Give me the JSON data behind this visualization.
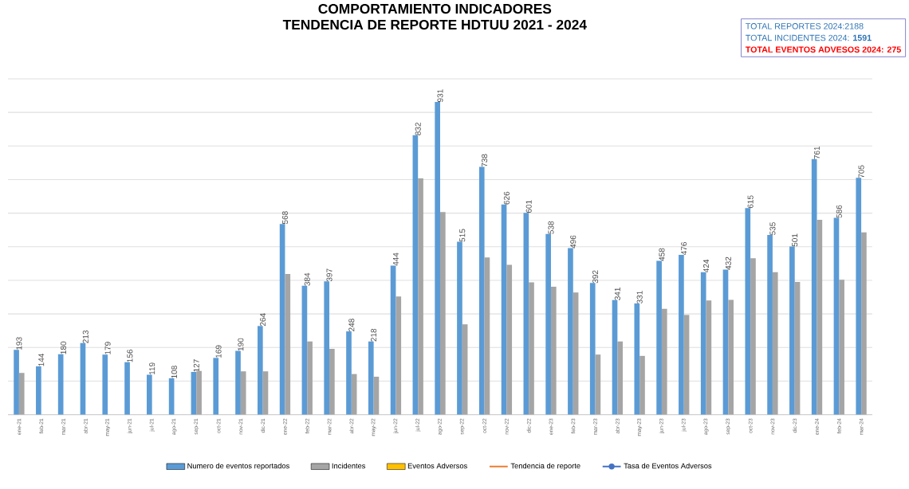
{
  "chart_data": {
    "type": "bar",
    "title": "COMPORTAMIENTO INDICADORES\nTENDENCIA DE REPORTE HDTUU 2021 - 2024",
    "annotations": [
      "TOTAL REPORTES  2024:2188",
      "TOTAL INCIDENTES 2024: **1591**",
      "TOTAL EVENTOS ADVESOS 2024: 275"
    ],
    "categories": [
      "ene-21",
      "feb-21",
      "mar-21",
      "abr-21",
      "may-21",
      "jun-21",
      "jul-21",
      "ago-21",
      "sep-21",
      "oct-21",
      "nov-21",
      "dic-21",
      "ene-22",
      "feb-22",
      "mar-22",
      "abr-22",
      "may-22",
      "jun-22",
      "jul-22",
      "ago-22",
      "sep-22",
      "oct-22",
      "nov-22",
      "dic-22",
      "ene-23",
      "feb-23",
      "mar-23",
      "abr-23",
      "may-23",
      "jun-23",
      "jul-23",
      "ago-23",
      "sep-23",
      "oct-23",
      "nov-23",
      "dic-23",
      "ene-24",
      "feb-24",
      "mar-24"
    ],
    "series": [
      {
        "name": "Numero de eventos reportados",
        "color": "#5b9bd5",
        "values": [
          193,
          144,
          180,
          213,
          179,
          156,
          119,
          108,
          127,
          169,
          190,
          264,
          568,
          384,
          397,
          248,
          218,
          444,
          832,
          931,
          515,
          738,
          626,
          601,
          538,
          496,
          392,
          341,
          331,
          458,
          476,
          424,
          432,
          615,
          535,
          501,
          761,
          586,
          705
        ],
        "value_labels": [
          "193",
          "144",
          "180",
          "213",
          "179",
          "156",
          "119",
          "108",
          "127",
          "169",
          "190",
          "264",
          "568",
          "384",
          "397",
          "248",
          "218",
          "444",
          "832",
          "931",
          "515",
          "738",
          "626",
          "601",
          "538",
          "496",
          "392",
          "341",
          "331",
          "458",
          "476",
          "424",
          "432",
          "615",
          "535",
          "501",
          "761",
          "586",
          "705"
        ]
      },
      {
        "name": "Incidentes",
        "color": "#a5a5a5",
        "values": [
          124,
          null,
          null,
          null,
          null,
          null,
          null,
          null,
          130,
          null,
          129,
          129,
          419,
          218,
          196,
          121,
          113,
          352,
          704,
          603,
          269,
          468,
          446,
          394,
          381,
          364,
          179,
          218,
          175,
          315,
          297,
          340,
          342,
          466,
          424,
          395,
          580,
          402,
          543
        ]
      },
      {
        "name": "Eventos Adversos",
        "color": "#ffc000",
        "values": [
          null,
          null,
          null,
          null,
          null,
          null,
          null,
          null,
          null,
          null,
          null,
          null,
          null,
          null,
          null,
          null,
          null,
          null,
          null,
          null,
          null,
          null,
          null,
          null,
          null,
          null,
          null,
          null,
          null,
          null,
          null,
          null,
          null,
          null,
          null,
          null,
          null,
          null,
          null
        ]
      },
      {
        "name": "Tendencia de reporte",
        "type": "line",
        "color": "#ed7d31",
        "values": [
          null,
          null,
          null,
          null,
          null,
          null,
          null,
          null,
          null,
          null,
          null,
          null,
          null,
          null,
          null,
          null,
          null,
          null,
          null,
          null,
          null,
          null,
          null,
          null,
          null,
          null,
          null,
          null,
          null,
          null,
          null,
          null,
          null,
          null,
          null,
          null,
          null,
          null,
          null
        ]
      },
      {
        "name": "Tasa de Eventos Adversos",
        "type": "line",
        "color": "#4472c4",
        "marker": "circle",
        "values": [
          null,
          null,
          null,
          null,
          null,
          null,
          null,
          null,
          null,
          null,
          null,
          null,
          null,
          null,
          null,
          null,
          null,
          null,
          null,
          null,
          null,
          null,
          null,
          null,
          null,
          null,
          null,
          null,
          null,
          null,
          null,
          null,
          null,
          null,
          null,
          null,
          null,
          null,
          null
        ]
      }
    ],
    "tick_labels": "x",
    "grid": "y",
    "legend": "bottom"
  }
}
